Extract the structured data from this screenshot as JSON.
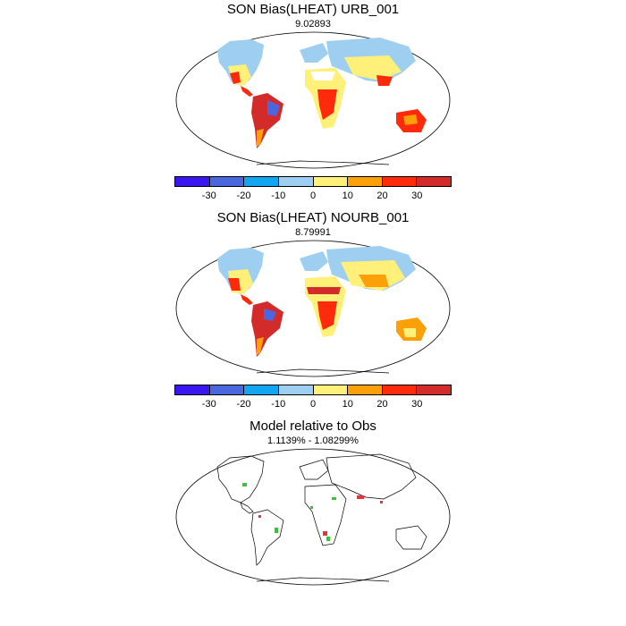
{
  "panels": [
    {
      "title": "SON Bias(LHEAT) URB_001",
      "subtitle": "9.02893"
    },
    {
      "title": "SON Bias(LHEAT) NOURB_001",
      "subtitle": "8.79991"
    },
    {
      "title": "Model relative to Obs",
      "subtitle": "1.1139% - 1.08299%"
    }
  ],
  "colorbar": {
    "colors": [
      "#3a16f0",
      "#4a67e0",
      "#12a6f2",
      "#9fcff0",
      "#fff07a",
      "#fca00a",
      "#fd2a0c",
      "#d32a2a"
    ],
    "ticks": [
      "-30",
      "-20",
      "-10",
      "0",
      "10",
      "20",
      "30"
    ]
  },
  "difference_colors": {
    "positive": "#32c832",
    "negative": "#e6323c"
  }
}
